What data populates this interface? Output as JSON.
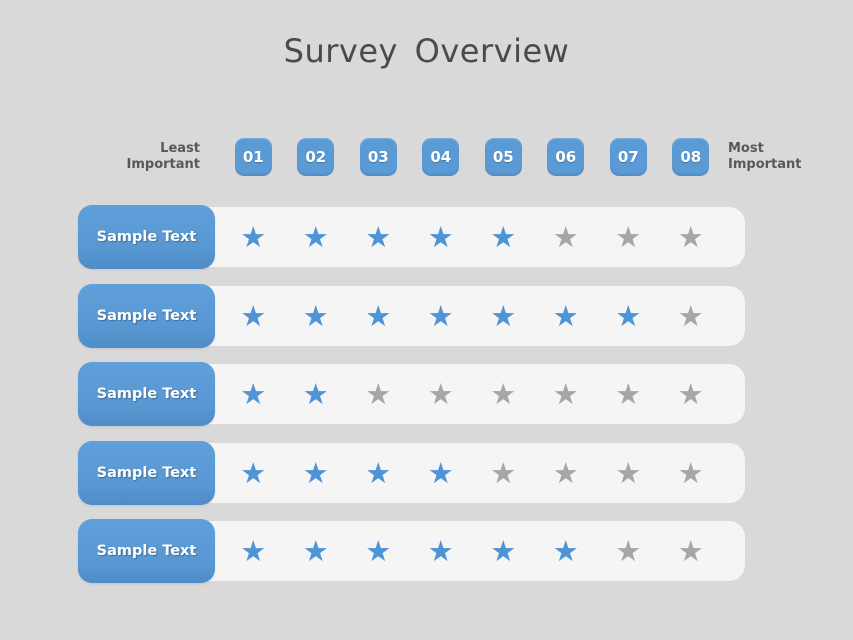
{
  "title": "Survey Overview",
  "colors": {
    "background": "#d9d9d9",
    "panel": "#f5f5f6",
    "accent_blue": "#5b9bd5",
    "star_active": "#4e94d6",
    "star_inactive": "#a6a6a6",
    "header_text": "#595959",
    "title_text": "#4a4a4a"
  },
  "scale": {
    "least_label": "Least\nImportant",
    "most_label": "Most\nImportant",
    "badges": [
      "01",
      "02",
      "03",
      "04",
      "05",
      "06",
      "07",
      "08"
    ],
    "max_rating": 8
  },
  "icons": {
    "star": "★"
  },
  "rows": [
    {
      "label": "Sample Text",
      "rating": 5
    },
    {
      "label": "Sample Text",
      "rating": 7
    },
    {
      "label": "Sample Text",
      "rating": 2
    },
    {
      "label": "Sample Text",
      "rating": 4
    },
    {
      "label": "Sample Text",
      "rating": 6
    }
  ]
}
